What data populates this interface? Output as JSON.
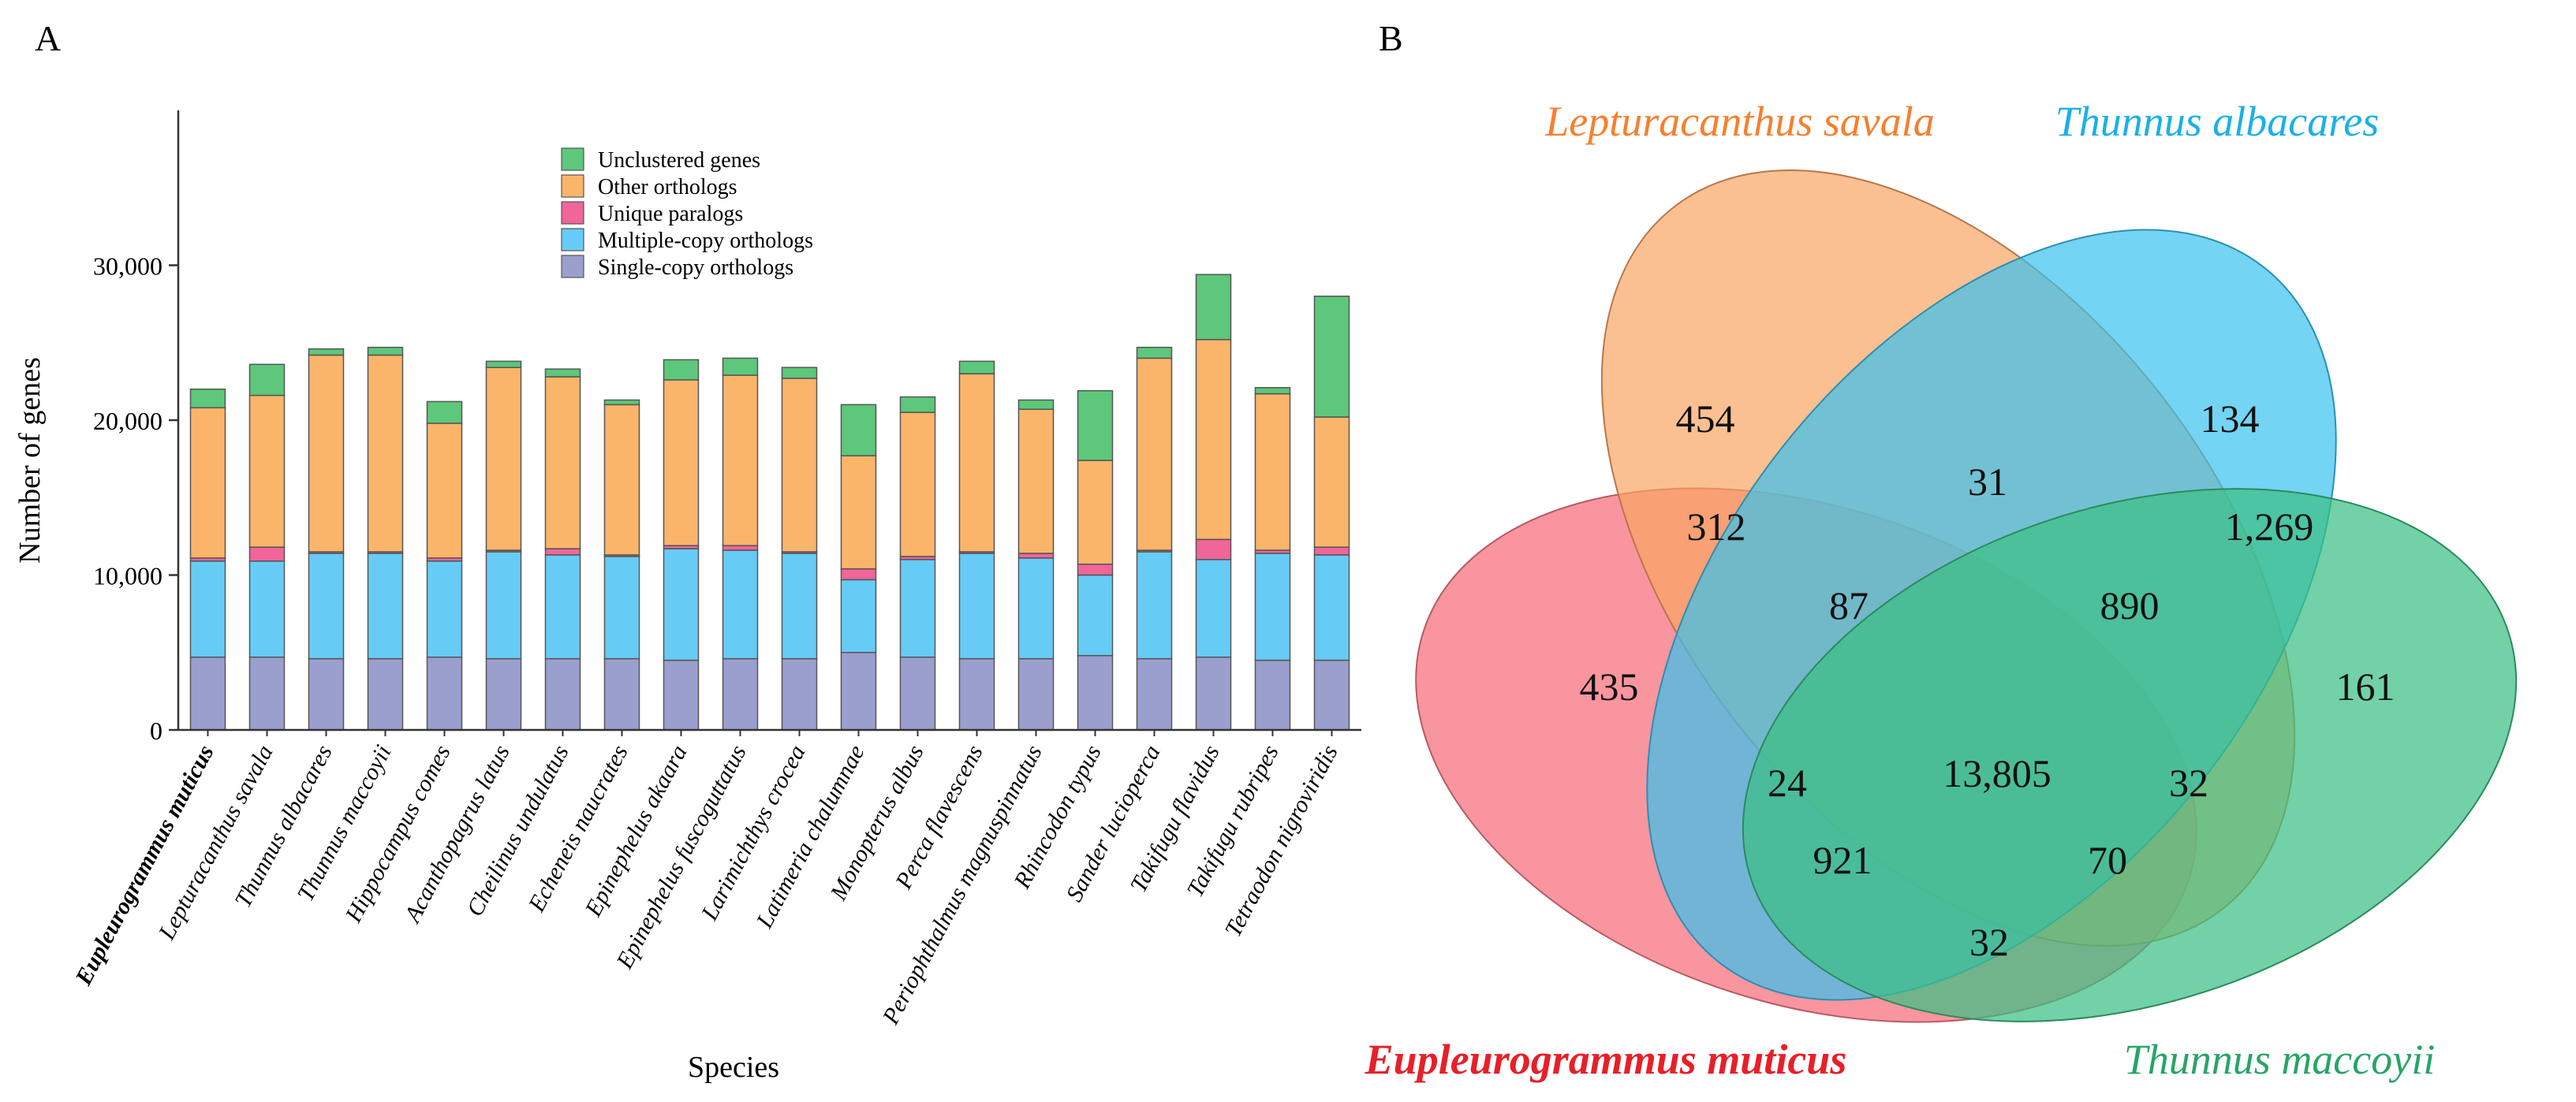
{
  "panels": {
    "a_label": "A",
    "b_label": "B"
  },
  "chart_data": [
    {
      "type": "bar",
      "stacked": true,
      "xlabel": "Species",
      "ylabel": "Number of genes",
      "ylim": [
        0,
        40000
      ],
      "yticks": [
        0,
        10000,
        20000,
        30000
      ],
      "ytick_labels": [
        "0",
        "10,000",
        "20,000",
        "30,000"
      ],
      "legend_position": "top-center",
      "categories": [
        "Eupleurogrammus muticus",
        "Lepturacanthus savala",
        "Thunnus albacares",
        "Thunnus maccoyii",
        "Hippocampus comes",
        "Acanthopagrus latus",
        "Cheilinus undulatus",
        "Echeneis naucrates",
        "Epinephelus akaara",
        "Epinephelus fuscoguttatus",
        "Larimichthys crocea",
        "Latimeria chalumnae",
        "Monopterus albus",
        "Perca flavescens",
        "Periophthalmus magnuspinnatus",
        "Rhincodon typus",
        "Sander lucioperca",
        "Takifugu flavidus",
        "Takifugu rubripes",
        "Tetraodon nigroviridis"
      ],
      "bold_category": "Eupleurogrammus muticus",
      "series": [
        {
          "name": "Single-copy orthologs",
          "color": "#9b9fce",
          "values": [
            4700,
            4700,
            4600,
            4600,
            4700,
            4600,
            4600,
            4600,
            4500,
            4600,
            4600,
            5000,
            4700,
            4600,
            4600,
            4800,
            4600,
            4700,
            4500,
            4500
          ]
        },
        {
          "name": "Multiple-copy orthologs",
          "color": "#66ccf5",
          "values": [
            6200,
            6200,
            6800,
            6800,
            6200,
            6900,
            6700,
            6600,
            7200,
            7000,
            6800,
            4700,
            6300,
            6800,
            6500,
            5200,
            6900,
            6300,
            6900,
            6800
          ]
        },
        {
          "name": "Unique paralogs",
          "color": "#f0659a",
          "values": [
            200,
            900,
            100,
            100,
            200,
            100,
            400,
            100,
            200,
            300,
            100,
            700,
            200,
            100,
            300,
            700,
            100,
            1300,
            200,
            500
          ]
        },
        {
          "name": "Other orthologs",
          "color": "#fab56a",
          "values": [
            9700,
            9800,
            12700,
            12700,
            8700,
            11800,
            11100,
            9700,
            10700,
            11000,
            11200,
            7300,
            9300,
            11500,
            9300,
            6700,
            12400,
            12900,
            10100,
            8400
          ]
        },
        {
          "name": "Unclustered genes",
          "color": "#5dc77b",
          "values": [
            1200,
            2000,
            400,
            500,
            1400,
            400,
            500,
            300,
            1300,
            1100,
            700,
            3300,
            1000,
            800,
            600,
            4500,
            700,
            4200,
            400,
            7800
          ]
        }
      ],
      "legend_order": [
        "Unclustered genes",
        "Other orthologs",
        "Unique paralogs",
        "Multiple-copy orthologs",
        "Single-copy orthologs"
      ]
    },
    {
      "type": "venn",
      "sets": [
        {
          "name": "Lepturacanthus savala",
          "color": "#f77f2e"
        },
        {
          "name": "Thunnus albacares",
          "color": "#1ab0e8"
        },
        {
          "name": "Eupleurogrammus muticus",
          "color": "#e81f28"
        },
        {
          "name": "Thunnus maccoyii",
          "color": "#27a565"
        }
      ],
      "regions": [
        {
          "sets": [
            "Lepturacanthus savala"
          ],
          "value": "454"
        },
        {
          "sets": [
            "Thunnus albacares"
          ],
          "value": "134"
        },
        {
          "sets": [
            "Eupleurogrammus muticus"
          ],
          "value": "435"
        },
        {
          "sets": [
            "Thunnus maccoyii"
          ],
          "value": "161"
        },
        {
          "sets": [
            "Lepturacanthus savala",
            "Thunnus albacares"
          ],
          "value": "31"
        },
        {
          "sets": [
            "Lepturacanthus savala",
            "Eupleurogrammus muticus"
          ],
          "value": "312"
        },
        {
          "sets": [
            "Thunnus albacares",
            "Thunnus maccoyii"
          ],
          "value": "1,269"
        },
        {
          "sets": [
            "Lepturacanthus savala",
            "Thunnus albacares",
            "Eupleurogrammus muticus"
          ],
          "value": "87"
        },
        {
          "sets": [
            "Lepturacanthus savala",
            "Thunnus albacares",
            "Thunnus maccoyii"
          ],
          "value": "890"
        },
        {
          "sets": [
            "Lepturacanthus savala",
            "Thunnus albacares",
            "Eupleurogrammus muticus",
            "Thunnus maccoyii"
          ],
          "value": "13,805"
        },
        {
          "sets": [
            "Thunnus albacares",
            "Eupleurogrammus muticus"
          ],
          "value": "24"
        },
        {
          "sets": [
            "Lepturacanthus savala",
            "Thunnus maccoyii"
          ],
          "value": "32"
        },
        {
          "sets": [
            "Thunnus albacares",
            "Eupleurogrammus muticus",
            "Thunnus maccoyii"
          ],
          "value": "921"
        },
        {
          "sets": [
            "Lepturacanthus savala",
            "Eupleurogrammus muticus",
            "Thunnus maccoyii"
          ],
          "value": "70"
        },
        {
          "sets": [
            "Eupleurogrammus muticus",
            "Thunnus maccoyii"
          ],
          "value": "32"
        }
      ]
    }
  ]
}
